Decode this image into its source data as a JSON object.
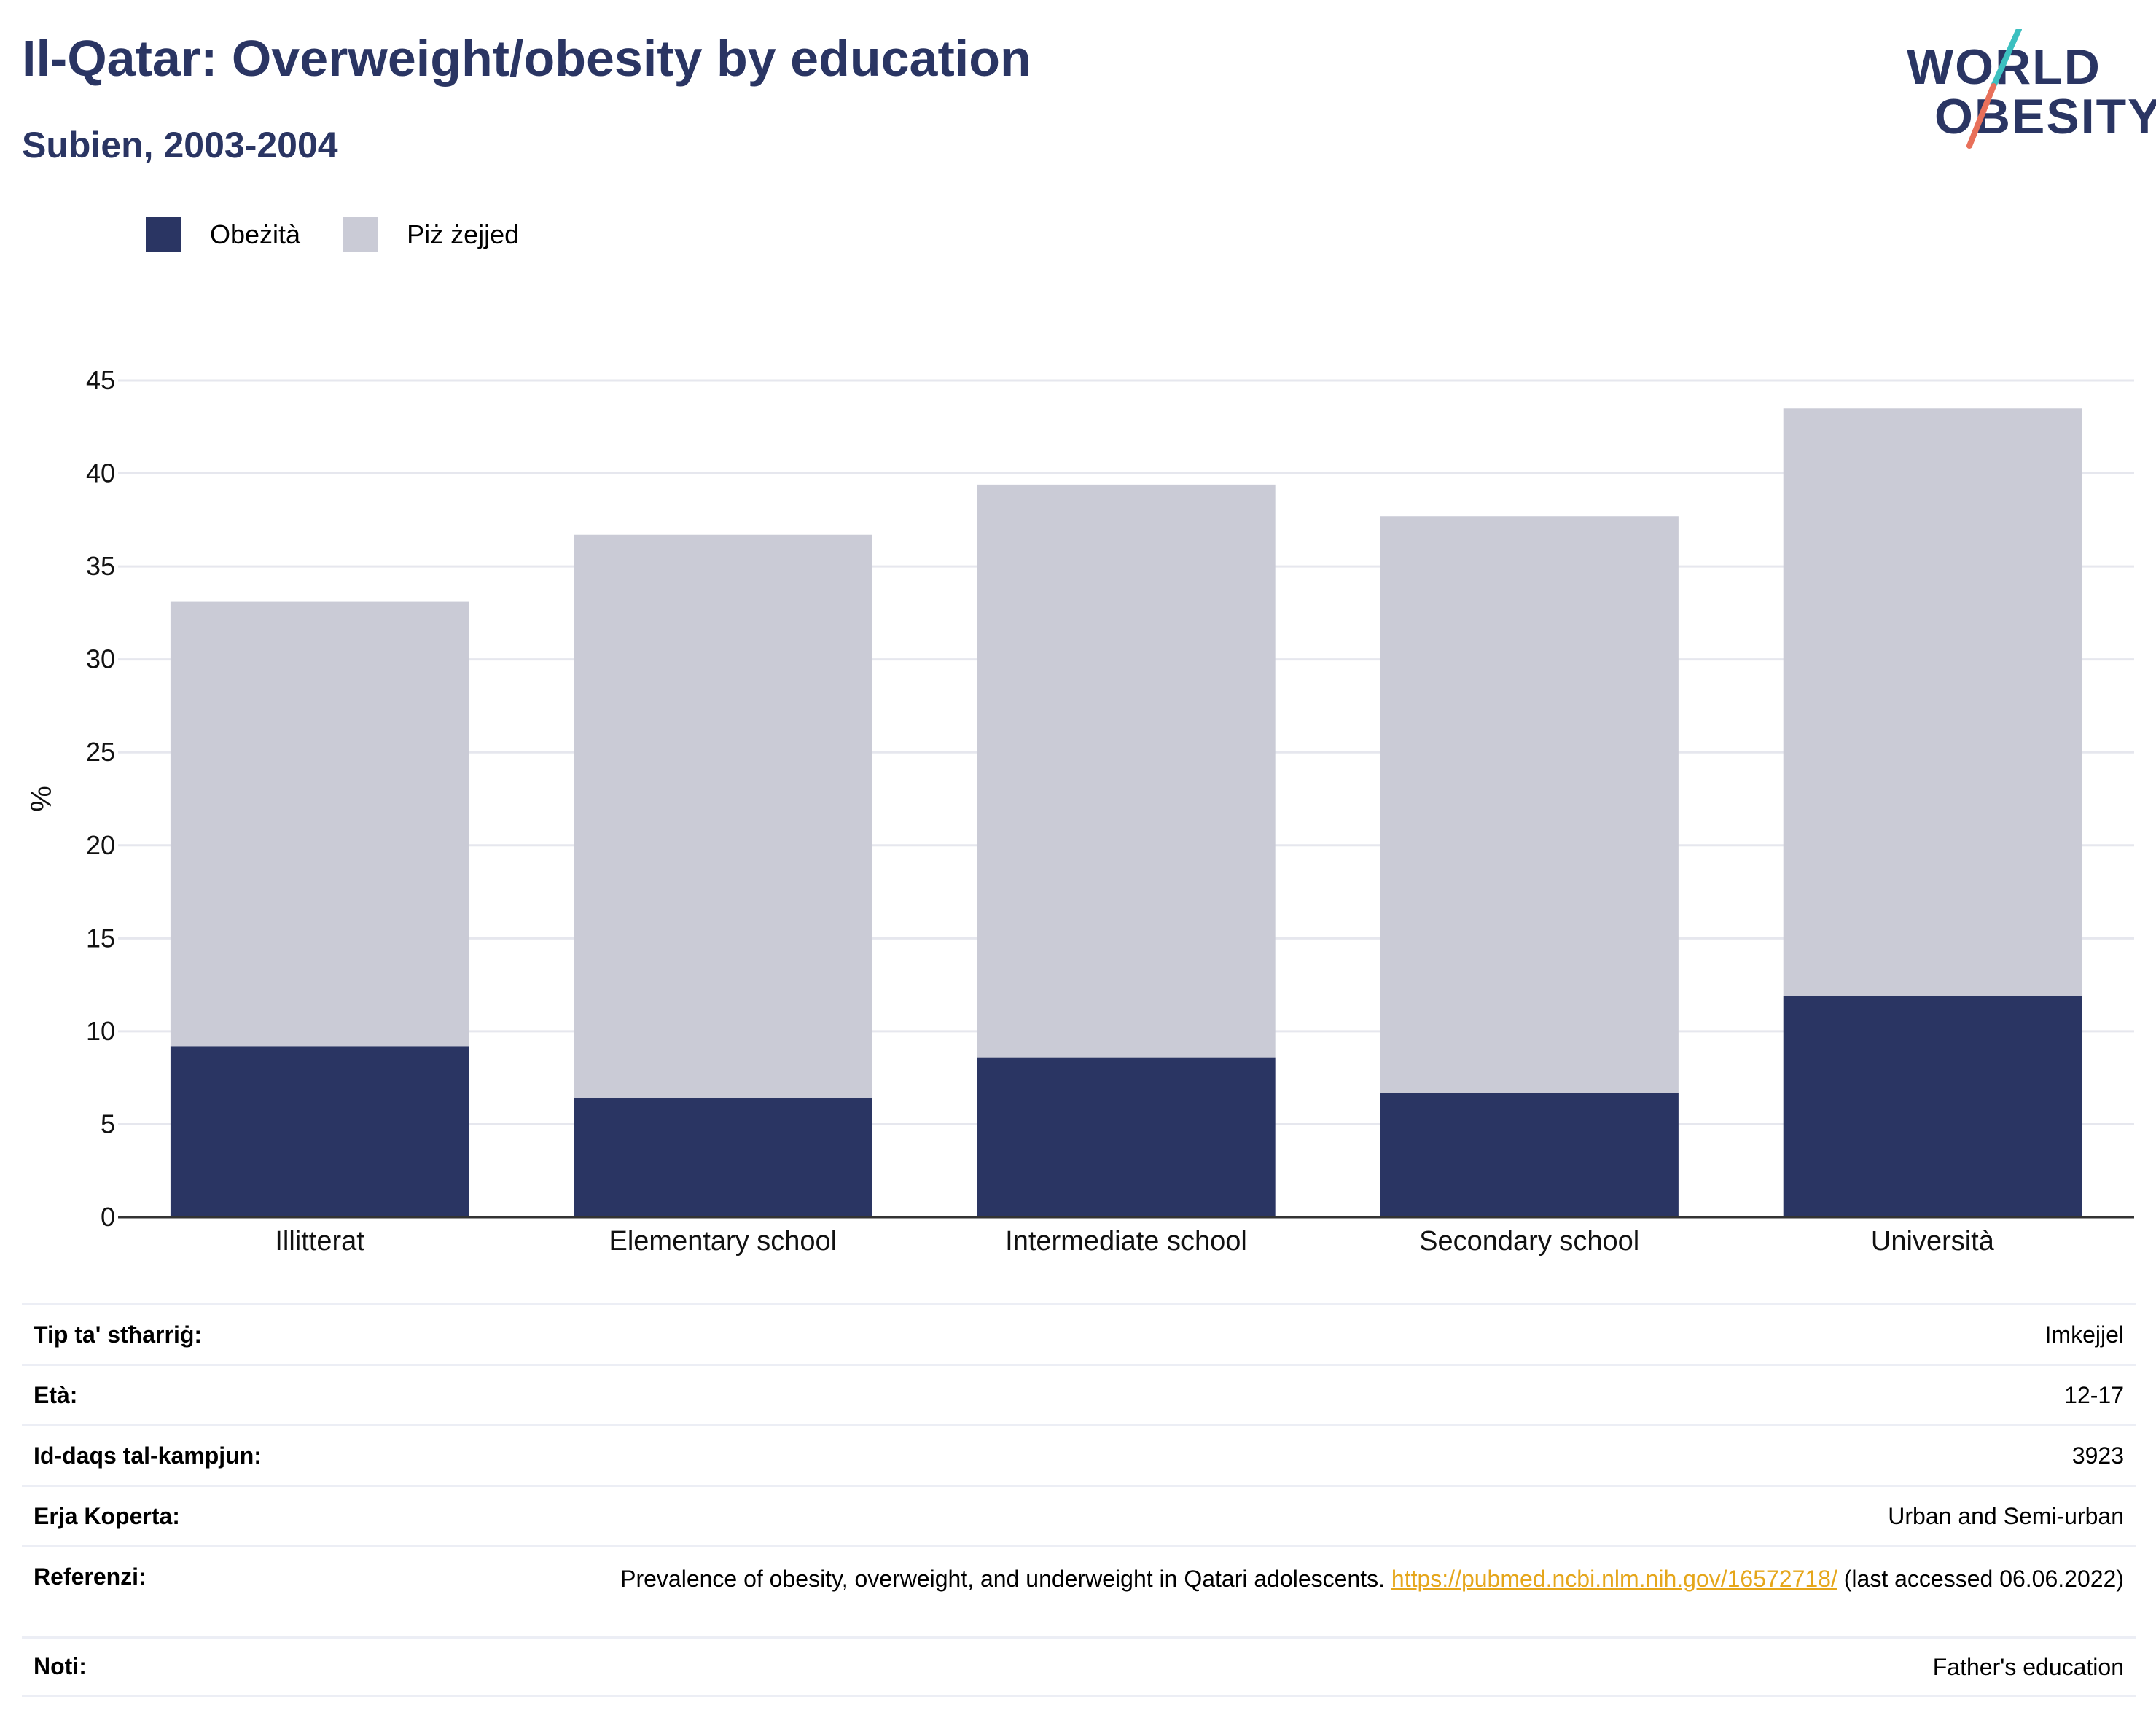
{
  "title": "Il-Qatar: Overweight/obesity by education",
  "subtitle": "Subien, 2003-2004",
  "logo": {
    "line1": "WORLD",
    "line2": "OBESITY",
    "slash_colors": [
      "#3cc0c0",
      "#e8705a"
    ]
  },
  "legend": [
    {
      "label": "Obeżità",
      "color": "#2a3563"
    },
    {
      "label": "Piż żejjed",
      "color": "#cacbd6"
    }
  ],
  "chart_data": {
    "type": "bar",
    "stacked": true,
    "categories": [
      "Illitterat",
      "Elementary school",
      "Intermediate school",
      "Secondary school",
      "Università"
    ],
    "series": [
      {
        "name": "Obeżità",
        "color": "#2a3563",
        "values": [
          9.2,
          6.4,
          8.6,
          6.7,
          11.9
        ]
      },
      {
        "name": "Piż żejjed",
        "color": "#cacbd6",
        "values": [
          23.9,
          30.3,
          30.8,
          31.0,
          31.6
        ]
      }
    ],
    "ylabel": "%",
    "ylim": [
      0,
      45
    ],
    "yticks": [
      0,
      5,
      10,
      15,
      20,
      25,
      30,
      35,
      40,
      45
    ],
    "grid": true
  },
  "meta": {
    "rows": [
      {
        "label": "Tip ta' stħarriġ:",
        "value": "Imkejjel"
      },
      {
        "label": "Età:",
        "value": "12-17"
      },
      {
        "label": "Id-daqs tal-kampjun:",
        "value": "3923"
      },
      {
        "label": "Erja Koperta:",
        "value": "Urban and Semi-urban"
      }
    ],
    "reference": {
      "label": "Referenzi:",
      "text_before": "Prevalence of obesity, overweight, and underweight in Qatari adolescents.",
      "link": "https://pubmed.ncbi.nlm.nih.gov/16572718/",
      "text_after": "(last accessed 06.06.2022)"
    },
    "notes": {
      "label": "Noti:",
      "value": "Father's education"
    }
  }
}
